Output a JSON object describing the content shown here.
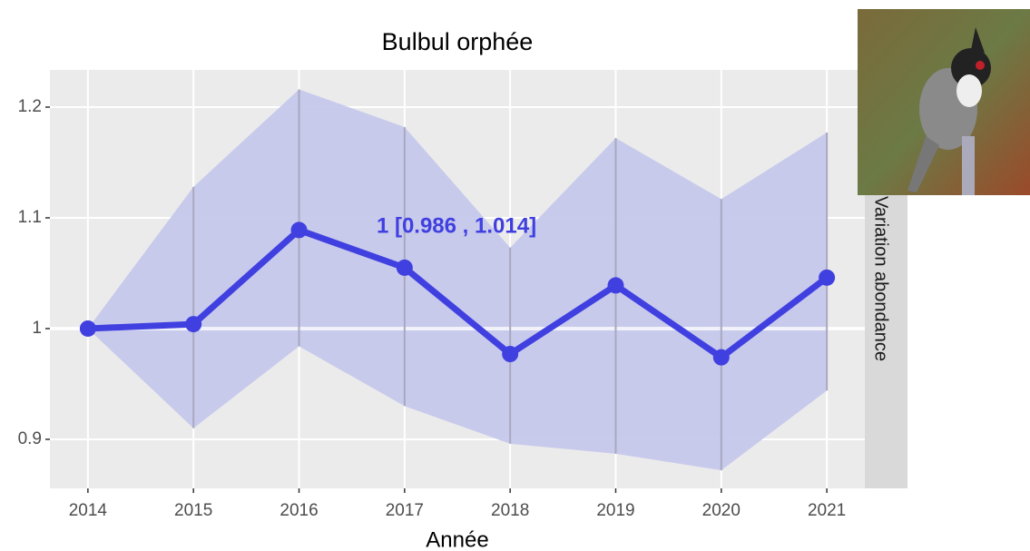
{
  "chart_data": {
    "type": "line",
    "title": "Bulbul orphée",
    "xlabel": "Année",
    "strip_label": "Variation abondance",
    "annotation": "1  [0.986 , 1.014]",
    "x": [
      2014,
      2015,
      2016,
      2017,
      2018,
      2019,
      2020,
      2021
    ],
    "values": [
      1.0,
      1.004,
      1.089,
      1.055,
      0.977,
      1.039,
      0.974,
      1.046
    ],
    "lower": [
      1.0,
      0.91,
      0.984,
      0.93,
      0.896,
      0.887,
      0.872,
      0.944
    ],
    "upper": [
      1.0,
      1.128,
      1.216,
      1.182,
      1.073,
      1.172,
      1.117,
      1.177
    ],
    "color": "#4040e0",
    "band_color": "#c6c8ec",
    "xlim": [
      2013.64,
      2021.36
    ],
    "ylim": [
      0.8557,
      1.2336
    ],
    "xticks": [
      2014,
      2015,
      2016,
      2017,
      2018,
      2019,
      2020,
      2021
    ],
    "yticks": [
      0.9,
      1.0,
      1.1,
      1.2
    ],
    "reference_line": 1.0,
    "grid": true
  }
}
